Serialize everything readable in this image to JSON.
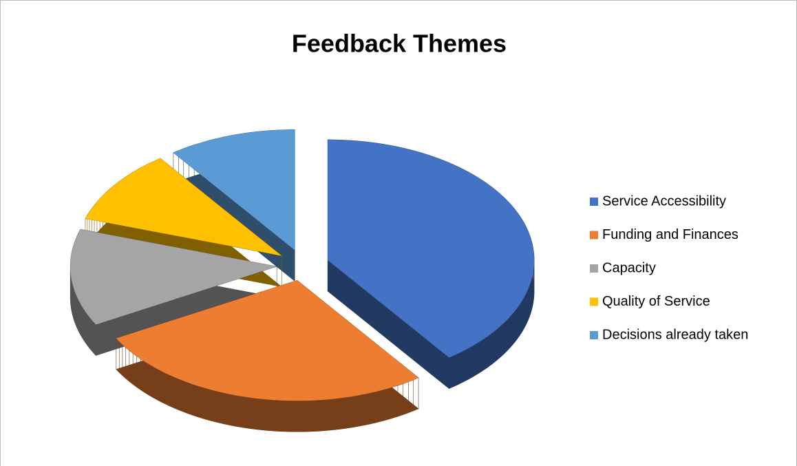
{
  "chart_data": {
    "type": "pie",
    "title": "Feedback Themes",
    "categories": [
      "Service Accessibility",
      "Funding and Finances",
      "Capacity",
      "Quality of Service",
      "Decisions already taken"
    ],
    "values": [
      40,
      27,
      13,
      10,
      10
    ],
    "colors": [
      "#4472c4",
      "#ed7d31",
      "#a5a5a5",
      "#ffc000",
      "#5b9bd5"
    ],
    "legend": "right"
  }
}
